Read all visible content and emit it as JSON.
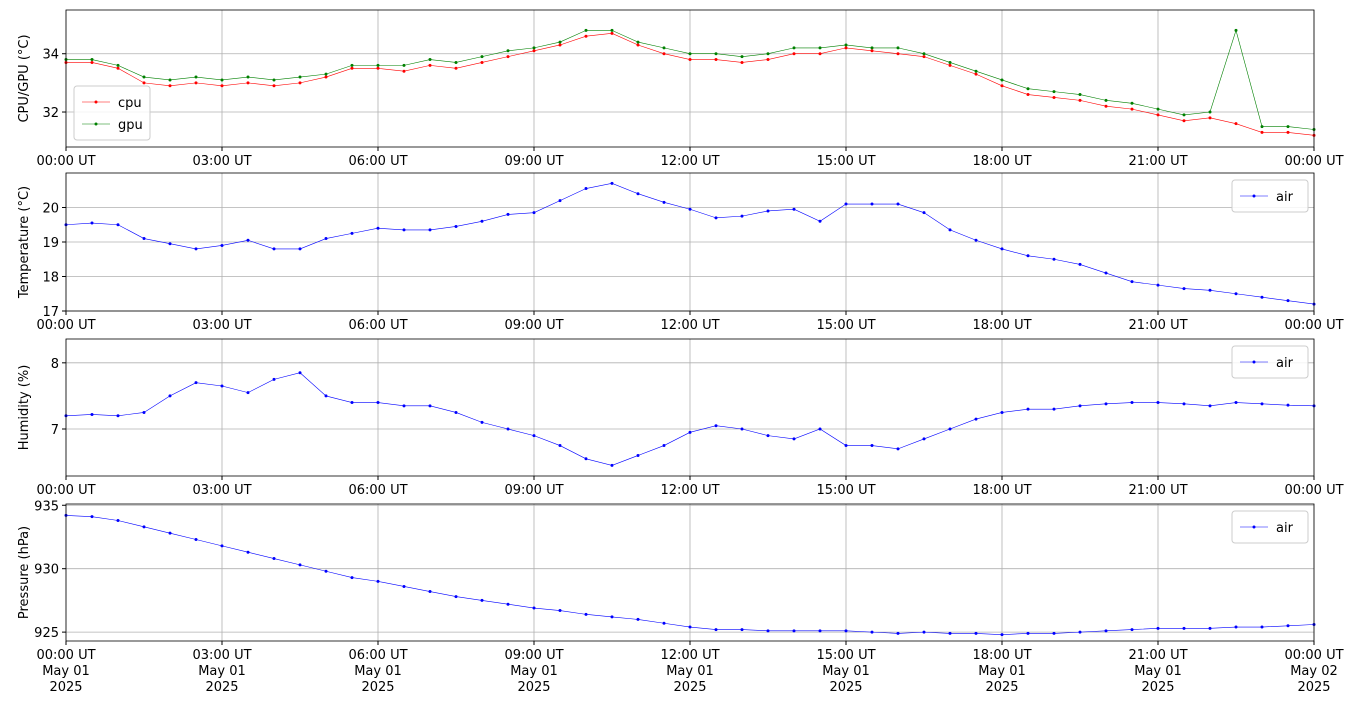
{
  "chart_data": [
    {
      "type": "line",
      "ylabel": "CPU/GPU (°C)",
      "legend": "lower left",
      "grid": true,
      "x": [
        0,
        0.5,
        1,
        1.5,
        2,
        2.5,
        3,
        3.5,
        4,
        4.5,
        5,
        5.5,
        6,
        6.5,
        7,
        7.5,
        8,
        8.5,
        9,
        9.5,
        10,
        10.5,
        11,
        11.5,
        12,
        12.5,
        13,
        13.5,
        14,
        14.5,
        15,
        15.5,
        16,
        16.5,
        17,
        17.5,
        18,
        18.5,
        19,
        19.5,
        20,
        20.5,
        21,
        21.5,
        22,
        22.5,
        23,
        23.5,
        24
      ],
      "xlim": [
        0,
        24
      ],
      "xticks": [
        {
          "value": 0,
          "label": "00:00 UT"
        },
        {
          "value": 3,
          "label": "03:00 UT"
        },
        {
          "value": 6,
          "label": "06:00 UT"
        },
        {
          "value": 9,
          "label": "09:00 UT"
        },
        {
          "value": 12,
          "label": "12:00 UT"
        },
        {
          "value": 15,
          "label": "15:00 UT"
        },
        {
          "value": 18,
          "label": "18:00 UT"
        },
        {
          "value": 21,
          "label": "21:00 UT"
        },
        {
          "value": 24,
          "label": "00:00 UT"
        }
      ],
      "ylim": [
        30.8,
        35.5
      ],
      "yticks": [
        32,
        34
      ],
      "series": [
        {
          "name": "cpu",
          "color": "#ff0000",
          "values": [
            33.7,
            33.7,
            33.5,
            33.0,
            32.9,
            33.0,
            32.9,
            33.0,
            32.9,
            33.0,
            33.2,
            33.5,
            33.5,
            33.4,
            33.6,
            33.5,
            33.7,
            33.9,
            34.1,
            34.3,
            34.6,
            34.7,
            34.3,
            34.0,
            33.8,
            33.8,
            33.7,
            33.8,
            34.0,
            34.0,
            34.2,
            34.1,
            34.0,
            33.9,
            33.6,
            33.3,
            32.9,
            32.6,
            32.5,
            32.4,
            32.2,
            32.1,
            31.9,
            31.7,
            31.8,
            31.6,
            31.3,
            31.3,
            31.2
          ]
        },
        {
          "name": "gpu",
          "color": "#008000",
          "values": [
            33.8,
            33.8,
            33.6,
            33.2,
            33.1,
            33.2,
            33.1,
            33.2,
            33.1,
            33.2,
            33.3,
            33.6,
            33.6,
            33.6,
            33.8,
            33.7,
            33.9,
            34.1,
            34.2,
            34.4,
            34.8,
            34.8,
            34.4,
            34.2,
            34.0,
            34.0,
            33.9,
            34.0,
            34.2,
            34.2,
            34.3,
            34.2,
            34.2,
            34.0,
            33.7,
            33.4,
            33.1,
            32.8,
            32.7,
            32.6,
            32.4,
            32.3,
            32.1,
            31.9,
            32.0,
            34.8,
            31.5,
            31.5,
            31.4
          ]
        }
      ]
    },
    {
      "type": "line",
      "ylabel": "Temperature (°C)",
      "legend": "upper right",
      "grid": true,
      "x": [
        0,
        0.5,
        1,
        1.5,
        2,
        2.5,
        3,
        3.5,
        4,
        4.5,
        5,
        5.5,
        6,
        6.5,
        7,
        7.5,
        8,
        8.5,
        9,
        9.5,
        10,
        10.5,
        11,
        11.5,
        12,
        12.5,
        13,
        13.5,
        14,
        14.5,
        15,
        15.5,
        16,
        16.5,
        17,
        17.5,
        18,
        18.5,
        19,
        19.5,
        20,
        20.5,
        21,
        21.5,
        22,
        22.5,
        23,
        23.5,
        24
      ],
      "xlim": [
        0,
        24
      ],
      "xticks": [
        {
          "value": 0,
          "label": "00:00 UT"
        },
        {
          "value": 3,
          "label": "03:00 UT"
        },
        {
          "value": 6,
          "label": "06:00 UT"
        },
        {
          "value": 9,
          "label": "09:00 UT"
        },
        {
          "value": 12,
          "label": "12:00 UT"
        },
        {
          "value": 15,
          "label": "15:00 UT"
        },
        {
          "value": 18,
          "label": "18:00 UT"
        },
        {
          "value": 21,
          "label": "21:00 UT"
        },
        {
          "value": 24,
          "label": "00:00 UT"
        }
      ],
      "ylim": [
        17,
        21
      ],
      "yticks": [
        17,
        18,
        19,
        20
      ],
      "series": [
        {
          "name": "air",
          "color": "#0000ff",
          "values": [
            19.5,
            19.55,
            19.5,
            19.1,
            18.95,
            18.8,
            18.9,
            19.05,
            18.8,
            18.8,
            19.1,
            19.25,
            19.4,
            19.35,
            19.35,
            19.45,
            19.6,
            19.8,
            19.85,
            20.2,
            20.55,
            20.7,
            20.4,
            20.15,
            19.95,
            19.7,
            19.75,
            19.9,
            19.95,
            19.6,
            20.1,
            20.1,
            20.1,
            19.85,
            19.35,
            19.05,
            18.8,
            18.6,
            18.5,
            18.35,
            18.1,
            17.85,
            17.75,
            17.65,
            17.6,
            17.5,
            17.4,
            17.3,
            17.2
          ]
        }
      ]
    },
    {
      "type": "line",
      "ylabel": "Humidity (%)",
      "legend": "upper right",
      "grid": true,
      "x": [
        0,
        0.5,
        1,
        1.5,
        2,
        2.5,
        3,
        3.5,
        4,
        4.5,
        5,
        5.5,
        6,
        6.5,
        7,
        7.5,
        8,
        8.5,
        9,
        9.5,
        10,
        10.5,
        11,
        11.5,
        12,
        12.5,
        13,
        13.5,
        14,
        14.5,
        15,
        15.5,
        16,
        16.5,
        17,
        17.5,
        18,
        18.5,
        19,
        19.5,
        20,
        20.5,
        21,
        21.5,
        22,
        22.5,
        23,
        23.5,
        24
      ],
      "xlim": [
        0,
        24
      ],
      "xticks": [
        {
          "value": 0,
          "label": "00:00 UT"
        },
        {
          "value": 3,
          "label": "03:00 UT"
        },
        {
          "value": 6,
          "label": "06:00 UT"
        },
        {
          "value": 9,
          "label": "09:00 UT"
        },
        {
          "value": 12,
          "label": "12:00 UT"
        },
        {
          "value": 15,
          "label": "15:00 UT"
        },
        {
          "value": 18,
          "label": "18:00 UT"
        },
        {
          "value": 21,
          "label": "21:00 UT"
        },
        {
          "value": 24,
          "label": "00:00 UT"
        }
      ],
      "ylim": [
        6.29,
        8.36
      ],
      "yticks": [
        7,
        8
      ],
      "series": [
        {
          "name": "air",
          "color": "#0000ff",
          "values": [
            7.2,
            7.22,
            7.2,
            7.25,
            7.5,
            7.7,
            7.65,
            7.55,
            7.75,
            7.85,
            7.5,
            7.4,
            7.4,
            7.35,
            7.35,
            7.25,
            7.1,
            7.0,
            6.9,
            6.75,
            6.55,
            6.45,
            6.6,
            6.75,
            6.95,
            7.05,
            7.0,
            6.9,
            6.85,
            7.0,
            6.75,
            6.75,
            6.7,
            6.85,
            7.0,
            7.15,
            7.25,
            7.3,
            7.3,
            7.35,
            7.38,
            7.4,
            7.4,
            7.38,
            7.35,
            7.4,
            7.38,
            7.36,
            7.35
          ]
        }
      ]
    },
    {
      "type": "line",
      "ylabel": "Pressure (hPa)",
      "legend": "upper right",
      "grid": true,
      "x": [
        0,
        0.5,
        1,
        1.5,
        2,
        2.5,
        3,
        3.5,
        4,
        4.5,
        5,
        5.5,
        6,
        6.5,
        7,
        7.5,
        8,
        8.5,
        9,
        9.5,
        10,
        10.5,
        11,
        11.5,
        12,
        12.5,
        13,
        13.5,
        14,
        14.5,
        15,
        15.5,
        16,
        16.5,
        17,
        17.5,
        18,
        18.5,
        19,
        19.5,
        20,
        20.5,
        21,
        21.5,
        22,
        22.5,
        23,
        23.5,
        24
      ],
      "xlim": [
        0,
        24
      ],
      "xticks": [
        {
          "value": 0,
          "label": "00:00 UT\nMay 01\n2025"
        },
        {
          "value": 3,
          "label": "03:00 UT\nMay 01\n2025"
        },
        {
          "value": 6,
          "label": "06:00 UT\nMay 01\n2025"
        },
        {
          "value": 9,
          "label": "09:00 UT\nMay 01\n2025"
        },
        {
          "value": 12,
          "label": "12:00 UT\nMay 01\n2025"
        },
        {
          "value": 15,
          "label": "15:00 UT\nMay 01\n2025"
        },
        {
          "value": 18,
          "label": "18:00 UT\nMay 01\n2025"
        },
        {
          "value": 21,
          "label": "21:00 UT\nMay 01\n2025"
        },
        {
          "value": 24,
          "label": "00:00 UT\nMay 02\n2025"
        }
      ],
      "ylim": [
        924.3,
        935.1
      ],
      "yticks": [
        925,
        930,
        935
      ],
      "series": [
        {
          "name": "air",
          "color": "#0000ff",
          "values": [
            934.2,
            934.1,
            933.8,
            933.3,
            932.8,
            932.3,
            931.8,
            931.3,
            930.8,
            930.3,
            929.8,
            929.3,
            929.0,
            928.6,
            928.2,
            927.8,
            927.5,
            927.2,
            926.9,
            926.7,
            926.4,
            926.2,
            926.0,
            925.7,
            925.4,
            925.2,
            925.2,
            925.1,
            925.1,
            925.1,
            925.1,
            925.0,
            924.9,
            925.0,
            924.9,
            924.9,
            924.8,
            924.9,
            924.9,
            925.0,
            925.1,
            925.2,
            925.3,
            925.3,
            925.3,
            925.4,
            925.4,
            925.5,
            925.6
          ]
        }
      ]
    }
  ]
}
